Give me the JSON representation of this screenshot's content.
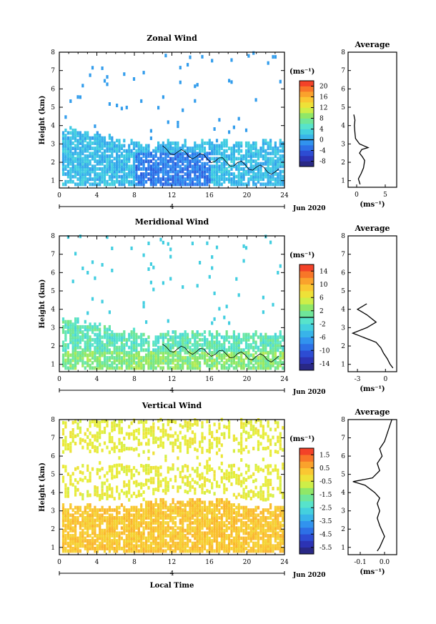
{
  "chart_data": [
    {
      "type": "heatmap",
      "title": "Zonal Wind",
      "xlabel": "",
      "ylabel": "Height (km)",
      "xlim": [
        0,
        24
      ],
      "ylim": [
        0.6,
        8
      ],
      "x_ticks": [
        "0",
        "4",
        "8",
        "12",
        "16",
        "20",
        "24"
      ],
      "y_ticks": [
        "1",
        "2",
        "3",
        "4",
        "5",
        "6",
        "7",
        "8"
      ],
      "day_label": "4",
      "date_label": "Jun 2020",
      "colorbar": {
        "unit": "(ms⁻¹)",
        "ticks": [
          "-8",
          "-4",
          "0",
          "4",
          "8",
          "12",
          "16",
          "20"
        ],
        "range": [
          -10,
          22
        ]
      },
      "profile": {
        "title": "Average",
        "xlabel": "(ms⁻¹)",
        "x_ticks": [
          "0",
          "5"
        ],
        "xlim": [
          -1.5,
          7
        ],
        "points": [
          [
            0.6,
            0.8
          ],
          [
            0.3,
            1.1
          ],
          [
            0.8,
            1.4
          ],
          [
            1.2,
            1.7
          ],
          [
            1.4,
            2.1
          ],
          [
            1.0,
            2.3
          ],
          [
            0.5,
            2.5
          ],
          [
            0.9,
            2.7
          ],
          [
            2.0,
            2.8
          ],
          [
            0.5,
            3.0
          ],
          [
            -0.2,
            3.3
          ],
          [
            -0.3,
            3.6
          ],
          [
            -0.4,
            4.0
          ],
          [
            -0.3,
            4.3
          ],
          [
            -0.5,
            4.6
          ]
        ]
      }
    },
    {
      "type": "heatmap",
      "title": "Meridional Wind",
      "xlabel": "",
      "ylabel": "Height (km)",
      "xlim": [
        0,
        24
      ],
      "ylim": [
        0.6,
        8
      ],
      "x_ticks": [
        "0",
        "4",
        "8",
        "12",
        "16",
        "20",
        "24"
      ],
      "y_ticks": [
        "1",
        "2",
        "3",
        "4",
        "5",
        "6",
        "7",
        "8"
      ],
      "day_label": "4",
      "date_label": "Jun 2020",
      "colorbar": {
        "unit": "(ms⁻¹)",
        "ticks": [
          "-14",
          "-10",
          "-6",
          "-2",
          "2",
          "6",
          "10",
          "14"
        ],
        "range": [
          -16,
          16
        ]
      },
      "profile": {
        "title": "Average",
        "xlabel": "(ms⁻¹)",
        "x_ticks": [
          "-3",
          "0"
        ],
        "xlim": [
          -4,
          1.2
        ],
        "points": [
          [
            0.8,
            0.8
          ],
          [
            0.5,
            1.0
          ],
          [
            0.2,
            1.3
          ],
          [
            -0.2,
            1.6
          ],
          [
            -0.5,
            1.9
          ],
          [
            -1.0,
            2.2
          ],
          [
            -2.5,
            2.5
          ],
          [
            -3.5,
            2.7
          ],
          [
            -2.0,
            3.0
          ],
          [
            -1.0,
            3.3
          ],
          [
            -2.0,
            3.7
          ],
          [
            -3.0,
            4.0
          ],
          [
            -2.0,
            4.3
          ]
        ]
      }
    },
    {
      "type": "heatmap",
      "title": "Vertical Wind",
      "xlabel": "Local Time",
      "ylabel": "Height (km)",
      "xlim": [
        0,
        24
      ],
      "ylim": [
        0.6,
        8
      ],
      "x_ticks": [
        "0",
        "4",
        "8",
        "12",
        "16",
        "20",
        "24"
      ],
      "y_ticks": [
        "1",
        "2",
        "3",
        "4",
        "5",
        "6",
        "7",
        "8"
      ],
      "day_label": "4",
      "date_label": "Jun 2020",
      "colorbar": {
        "unit": "(ms⁻¹)",
        "ticks": [
          "-5.5",
          "-4.5",
          "-3.5",
          "-2.5",
          "-1.5",
          "-0.5",
          "0.5",
          "1.5"
        ],
        "range": [
          -6,
          2
        ]
      },
      "profile": {
        "title": "Average",
        "xlabel": "(ms⁻¹)",
        "x_ticks": [
          "-0.1",
          "0.0"
        ],
        "xlim": [
          -0.15,
          0.05
        ],
        "points": [
          [
            -0.03,
            0.8
          ],
          [
            -0.02,
            1.0
          ],
          [
            -0.01,
            1.3
          ],
          [
            0.0,
            1.6
          ],
          [
            -0.01,
            1.9
          ],
          [
            -0.02,
            2.2
          ],
          [
            -0.03,
            2.6
          ],
          [
            -0.02,
            3.0
          ],
          [
            -0.03,
            3.4
          ],
          [
            -0.02,
            3.7
          ],
          [
            -0.04,
            4.0
          ],
          [
            -0.08,
            4.4
          ],
          [
            -0.13,
            4.6
          ],
          [
            -0.05,
            4.8
          ],
          [
            -0.02,
            5.2
          ],
          [
            -0.03,
            5.6
          ],
          [
            -0.01,
            6.0
          ],
          [
            -0.02,
            6.4
          ],
          [
            0.0,
            6.8
          ],
          [
            0.01,
            7.2
          ],
          [
            0.02,
            7.6
          ],
          [
            0.03,
            8.0
          ]
        ]
      }
    }
  ]
}
